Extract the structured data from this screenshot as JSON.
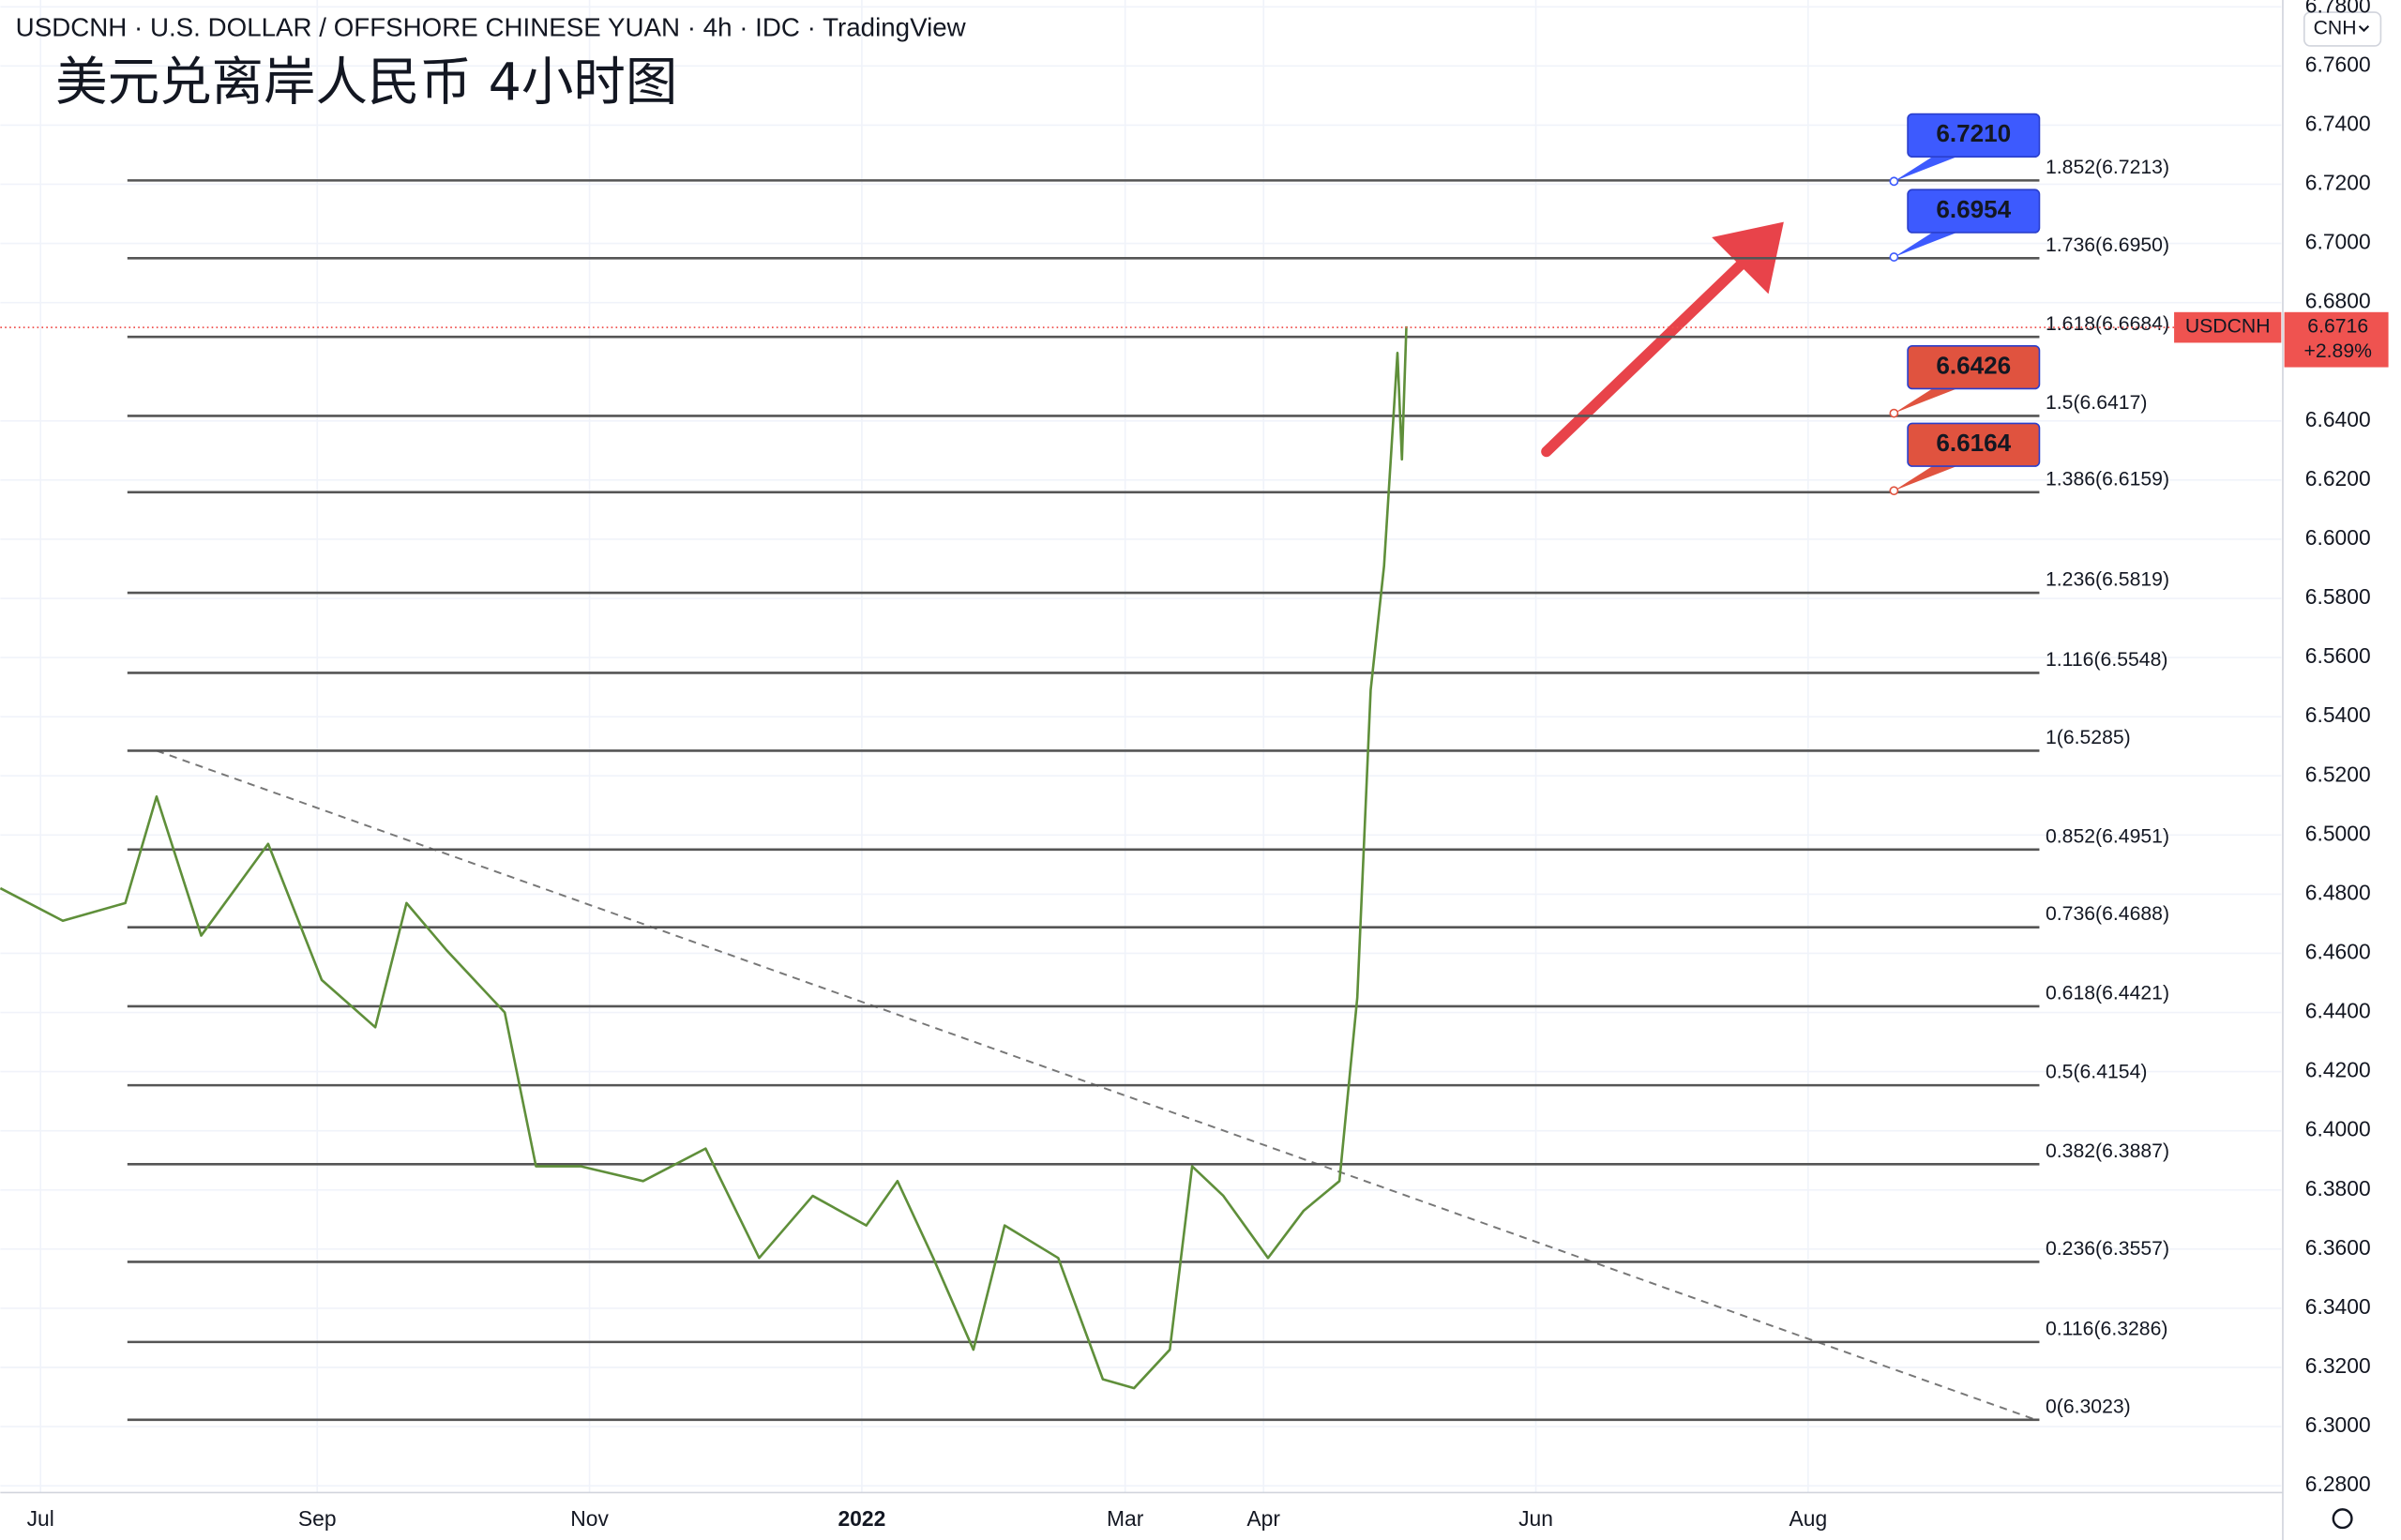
{
  "chart_data": {
    "type": "line",
    "header": "USDCNH · U.S. DOLLAR / OFFSHORE CHINESE YUAN · 4h · IDC · TradingView",
    "title": "美元兑离岸人民币 4小时图",
    "currency_button": "CNH",
    "x": [
      -9,
      5,
      19,
      26,
      36,
      51,
      63,
      75,
      82,
      91,
      104,
      111,
      121,
      135,
      149,
      161,
      173,
      185,
      192,
      200,
      209,
      216,
      228,
      238,
      245,
      253,
      258,
      265,
      275,
      283,
      291,
      295,
      298,
      301,
      304,
      305,
      306
    ],
    "series": [
      {
        "name": "USDCNH",
        "color": "#5f8f3a",
        "values": [
          6.482,
          6.471,
          6.477,
          6.513,
          6.466,
          6.497,
          6.451,
          6.435,
          6.477,
          6.461,
          6.44,
          6.388,
          6.388,
          6.383,
          6.394,
          6.357,
          6.378,
          6.368,
          6.383,
          6.357,
          6.326,
          6.368,
          6.357,
          6.316,
          6.313,
          6.326,
          6.388,
          6.378,
          6.357,
          6.373,
          6.383,
          6.445,
          6.549,
          6.591,
          6.663,
          6.627,
          6.672
        ]
      }
    ],
    "last_price": {
      "value": 6.6716,
      "change": "+2.89%",
      "color": "#ef5350"
    },
    "xlim": [
      -9,
      502
    ],
    "ylim": [
      6.2777,
      6.7823
    ],
    "xticks": [
      {
        "value": 0,
        "label": "Jul"
      },
      {
        "value": 62,
        "label": "Sep"
      },
      {
        "value": 123,
        "label": "Nov"
      },
      {
        "value": 184,
        "label": "2022"
      },
      {
        "value": 243,
        "label": "Mar"
      },
      {
        "value": 274,
        "label": "Apr"
      },
      {
        "value": 335,
        "label": "Jun"
      },
      {
        "value": 396,
        "label": "Aug"
      }
    ],
    "yticks": [
      {
        "value": 6.28,
        "label": "6.2800"
      },
      {
        "value": 6.3,
        "label": "6.3000"
      },
      {
        "value": 6.32,
        "label": "6.3200"
      },
      {
        "value": 6.34,
        "label": "6.3400"
      },
      {
        "value": 6.36,
        "label": "6.3600"
      },
      {
        "value": 6.38,
        "label": "6.3800"
      },
      {
        "value": 6.4,
        "label": "6.4000"
      },
      {
        "value": 6.42,
        "label": "6.4200"
      },
      {
        "value": 6.44,
        "label": "6.4400"
      },
      {
        "value": 6.46,
        "label": "6.4600"
      },
      {
        "value": 6.48,
        "label": "6.4800"
      },
      {
        "value": 6.5,
        "label": "6.5000"
      },
      {
        "value": 6.52,
        "label": "6.5200"
      },
      {
        "value": 6.54,
        "label": "6.5400"
      },
      {
        "value": 6.56,
        "label": "6.5600"
      },
      {
        "value": 6.58,
        "label": "6.5800"
      },
      {
        "value": 6.6,
        "label": "6.6000"
      },
      {
        "value": 6.62,
        "label": "6.6200"
      },
      {
        "value": 6.64,
        "label": "6.6400"
      },
      {
        "value": 6.68,
        "label": "6.6800"
      },
      {
        "value": 6.7,
        "label": "6.7000"
      },
      {
        "value": 6.72,
        "label": "6.7200"
      },
      {
        "value": 6.74,
        "label": "6.7400"
      },
      {
        "value": 6.76,
        "label": "6.7600"
      },
      {
        "value": 6.78,
        "label": "6.7800"
      }
    ],
    "grid": true,
    "fib_levels": [
      {
        "label": "1.852(6.7213)",
        "value": 6.7213
      },
      {
        "label": "1.736(6.6950)",
        "value": 6.695
      },
      {
        "label": "1.618(6.6684)",
        "value": 6.6684
      },
      {
        "label": "1.5(6.6417)",
        "value": 6.6417
      },
      {
        "label": "1.386(6.6159)",
        "value": 6.6159
      },
      {
        "label": "1.236(6.5819)",
        "value": 6.5819
      },
      {
        "label": "1.116(6.5548)",
        "value": 6.5548
      },
      {
        "label": "1(6.5285)",
        "value": 6.5285
      },
      {
        "label": "0.852(6.4951)",
        "value": 6.4951
      },
      {
        "label": "0.736(6.4688)",
        "value": 6.4688
      },
      {
        "label": "0.618(6.4421)",
        "value": 6.4421
      },
      {
        "label": "0.5(6.4154)",
        "value": 6.4154
      },
      {
        "label": "0.382(6.3887)",
        "value": 6.3887
      },
      {
        "label": "0.236(6.3557)",
        "value": 6.3557
      },
      {
        "label": "0.116(6.3286)",
        "value": 6.3286
      },
      {
        "label": "0(6.3023)",
        "value": 6.3023
      }
    ],
    "callouts": [
      {
        "label": "6.7210",
        "value": 6.721,
        "color": "#3d5afe"
      },
      {
        "label": "6.6954",
        "value": 6.6954,
        "color": "#3d5afe"
      },
      {
        "label": "6.6426",
        "value": 6.6426,
        "color": "#e0533f"
      },
      {
        "label": "6.6164",
        "value": 6.6164,
        "color": "#e0533f"
      }
    ],
    "trendline": {
      "x": [
        26,
        447
      ],
      "y": [
        6.5285,
        6.3023
      ]
    }
  }
}
